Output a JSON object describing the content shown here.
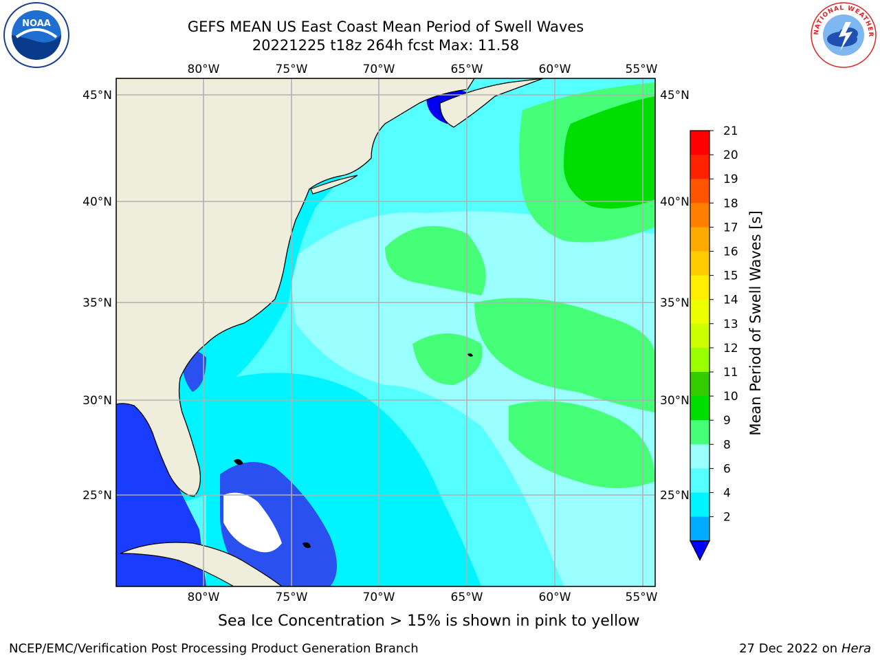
{
  "header": {
    "title_line1": "GEFS MEAN US East Coast Mean Period of Swell Waves",
    "title_line2": "20221225 t18z 264h fcst   Max: 11.58"
  },
  "logos": {
    "left": {
      "icon": "noaa-logo",
      "text": "NOAA"
    },
    "right": {
      "icon": "nws-logo",
      "text": "NATIONAL WEATHER SERVICE"
    }
  },
  "map": {
    "lon_labels": [
      "80°W",
      "75°W",
      "70°W",
      "65°W",
      "60°W",
      "55°W"
    ],
    "lat_labels": [
      "45°N",
      "40°N",
      "35°N",
      "30°N",
      "25°N"
    ],
    "colors": {
      "land": "#efeedd",
      "coast": "#000000",
      "grid": "#b0b0b0",
      "no_data": "#ffffff"
    }
  },
  "colorbar": {
    "label": "Mean Period of Swell Waves [s]",
    "ticks": [
      "21",
      "20",
      "19",
      "18",
      "17",
      "16",
      "15",
      "14",
      "13",
      "12",
      "11",
      "10",
      "9",
      "8",
      "6",
      "4",
      "2"
    ],
    "colors": [
      "#ff0000",
      "#ff2200",
      "#ff5500",
      "#ff7f00",
      "#ffaa00",
      "#ffcc00",
      "#ffee00",
      "#eeff00",
      "#ccff00",
      "#99ff00",
      "#33cc00",
      "#00dd00",
      "#44ff77",
      "#99ffff",
      "#55ffff",
      "#00f4ff",
      "#00aaff"
    ],
    "under_color": "#0000ff"
  },
  "footer": {
    "note": "Sea Ice Concentration > 15% is shown in pink to yellow",
    "credit": "NCEP/EMC/Verification Post Processing Product Generation Branch",
    "date": "27 Dec 2022 on",
    "machine": "Hera"
  }
}
